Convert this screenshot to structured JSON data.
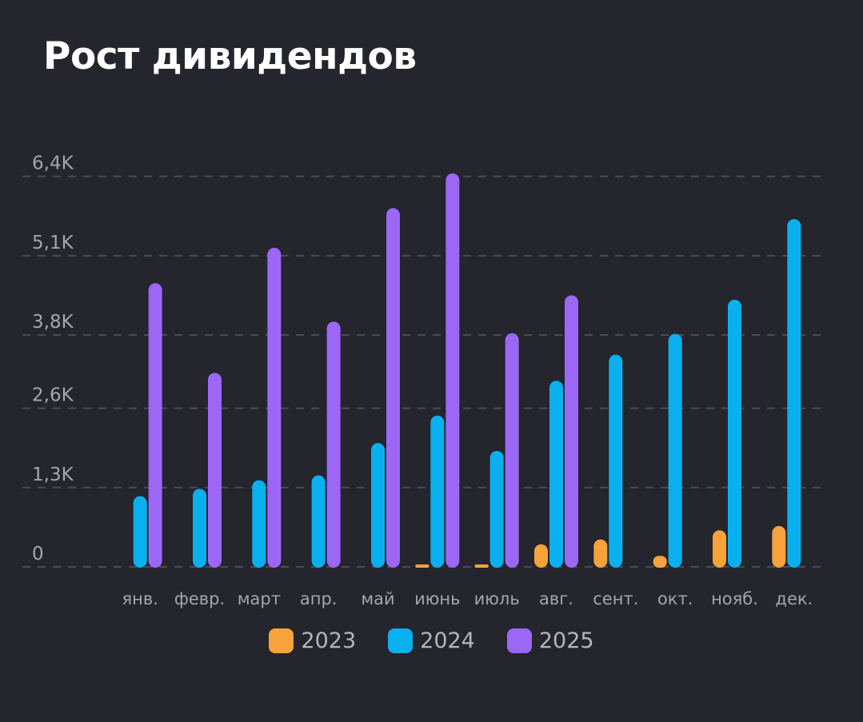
{
  "title": "Рост дивидендов",
  "chart_data": {
    "type": "bar",
    "title": "Рост дивидендов",
    "xlabel": "",
    "ylabel": "",
    "ylim": [
      0,
      6500
    ],
    "ytick_values": [
      0,
      1300,
      2600,
      3800,
      5100,
      6400
    ],
    "ytick_labels": [
      "0",
      "1,3K",
      "2,6K",
      "3,8K",
      "5,1K",
      "6,4K"
    ],
    "categories": [
      "янв.",
      "февр.",
      "март",
      "апр.",
      "май",
      "июнь",
      "июль",
      "авг.",
      "сент.",
      "окт.",
      "нояб.",
      "дек."
    ],
    "series": [
      {
        "name": "2023",
        "color": "#f7a23b",
        "values": [
          0,
          0,
          0,
          0,
          0,
          30,
          30,
          370,
          450,
          180,
          600,
          670
        ]
      },
      {
        "name": "2024",
        "color": "#0ab0ee",
        "values": [
          1160,
          1280,
          1420,
          1500,
          2030,
          2480,
          1900,
          3050,
          3480,
          3820,
          4380,
          5700
        ]
      },
      {
        "name": "2025",
        "color": "#9c67f5",
        "values": [
          4650,
          3180,
          5230,
          4020,
          5880,
          6450,
          3830,
          4450,
          0,
          0,
          0,
          0
        ]
      }
    ],
    "grid": true,
    "grid_style": "dashed",
    "legend_position": "bottom",
    "background": "#24252d"
  }
}
